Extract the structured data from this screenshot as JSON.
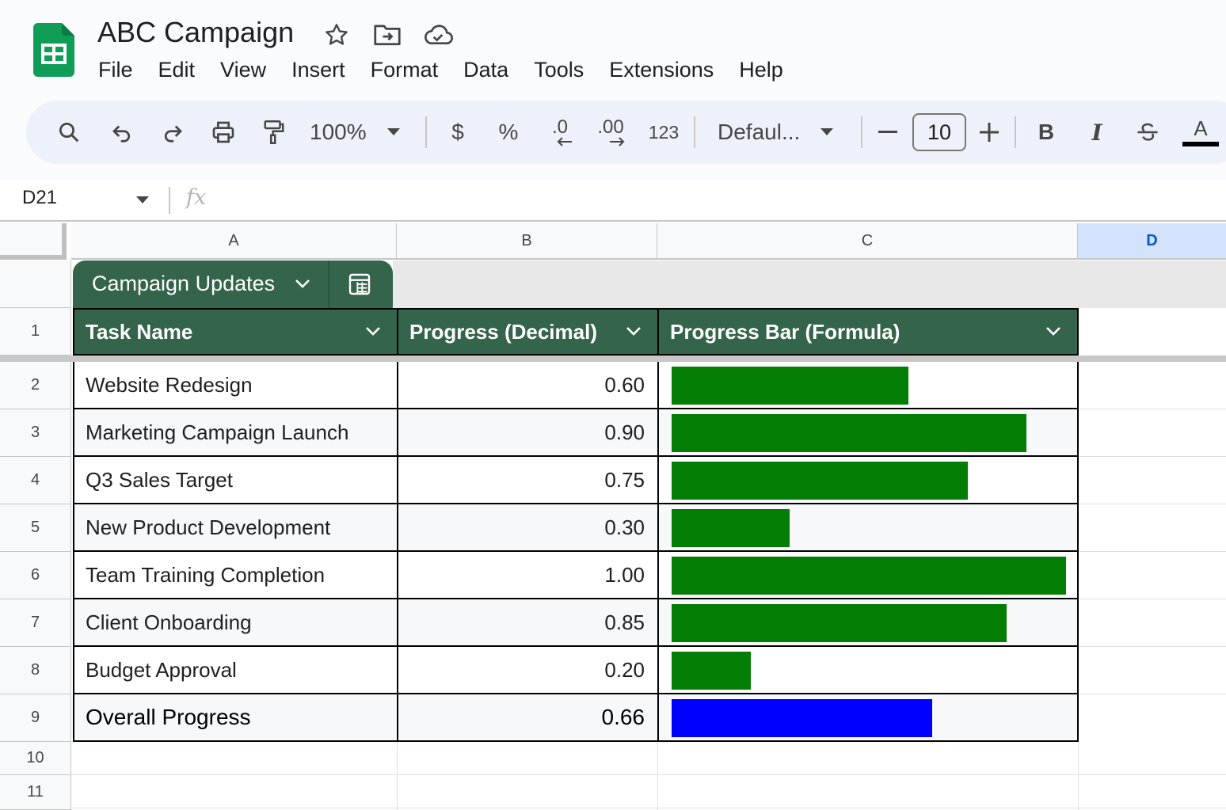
{
  "app": {
    "title": "ABC Campaign",
    "icons": [
      "star-icon",
      "move-to-folder-icon",
      "cloud-saved-icon"
    ]
  },
  "menu": [
    "File",
    "Edit",
    "View",
    "Insert",
    "Format",
    "Data",
    "Tools",
    "Extensions",
    "Help"
  ],
  "toolbar": {
    "zoom": "100%",
    "currency": "$",
    "percent": "%",
    "decrease_decimal": ".0",
    "increase_decimal": ".00",
    "more_formats": "123",
    "font": "Defaul...",
    "font_size": "10",
    "bold": "B",
    "italic": "I",
    "text_color": "A"
  },
  "formula_bar": {
    "cell_ref": "D21",
    "fx": "fx",
    "formula": ""
  },
  "columns": [
    "A",
    "B",
    "C",
    "D"
  ],
  "selected_column": "D",
  "rows": [
    "1",
    "2",
    "3",
    "4",
    "5",
    "6",
    "7",
    "8",
    "9",
    "10",
    "11"
  ],
  "table": {
    "name": "Campaign Updates",
    "headers": [
      "Task Name",
      "Progress (Decimal)",
      "Progress Bar (Formula)"
    ],
    "body": [
      {
        "task": "Website Redesign",
        "progress": "0.60",
        "value": 0.6
      },
      {
        "task": "Marketing Campaign Launch",
        "progress": "0.90",
        "value": 0.9
      },
      {
        "task": "Q3 Sales Target",
        "progress": "0.75",
        "value": 0.75
      },
      {
        "task": "New Product Development",
        "progress": "0.30",
        "value": 0.3
      },
      {
        "task": "Team Training Completion",
        "progress": "1.00",
        "value": 1.0
      },
      {
        "task": "Client Onboarding",
        "progress": "0.85",
        "value": 0.85
      },
      {
        "task": "Budget Approval",
        "progress": "0.20",
        "value": 0.2
      }
    ],
    "total": {
      "task": "Overall Progress",
      "progress": "0.66",
      "value": 0.66
    }
  },
  "colors": {
    "header_green": "#35644d",
    "bar_green": "#047d04",
    "bar_blue": "#0000ff",
    "selected_col": "#d3e3fd"
  }
}
